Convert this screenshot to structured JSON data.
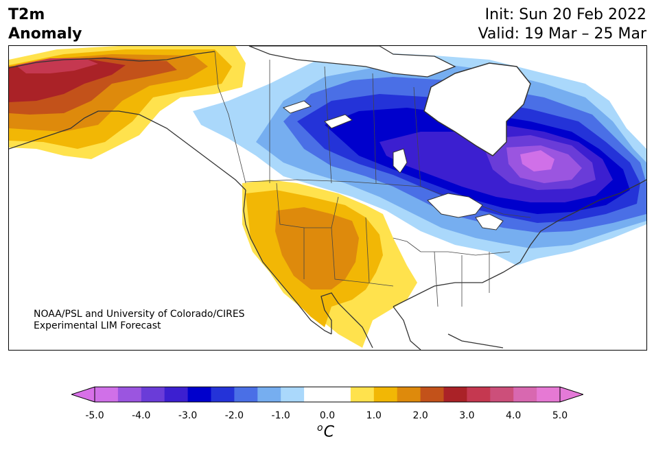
{
  "header": {
    "variable": "T2m",
    "quantity": "Anomaly",
    "init": "Init: Sun 20 Feb 2022",
    "valid": "Valid: 19 Mar – 25 Mar"
  },
  "credit": {
    "line1": "NOAA/PSL and University of Colorado/CIRES",
    "line2": "Experimental LIM Forecast"
  },
  "colorbar": {
    "unit_sup": "o",
    "unit_base": "C",
    "ticks": [
      "-5.0",
      "-4.0",
      "-3.0",
      "-2.0",
      "-1.0",
      "0.0",
      "1.0",
      "2.0",
      "3.0",
      "4.0",
      "5.0"
    ],
    "colors": [
      "#d070e8",
      "#9b55e0",
      "#6a3cd8",
      "#3c1fd0",
      "#0000cc",
      "#2433d8",
      "#4a6fe6",
      "#76aef0",
      "#aad8fb",
      "#ffffff",
      "#ffffff",
      "#ffe24d",
      "#f2b705",
      "#de8a0c",
      "#c3521a",
      "#aa2227",
      "#c53850",
      "#cc4f7a",
      "#d868b0",
      "#e679d4"
    ],
    "under_color": "#d870e8",
    "over_color": "#e47ad8"
  },
  "map": {
    "land_color": "#ffffff",
    "outline_color": "#333333"
  }
}
